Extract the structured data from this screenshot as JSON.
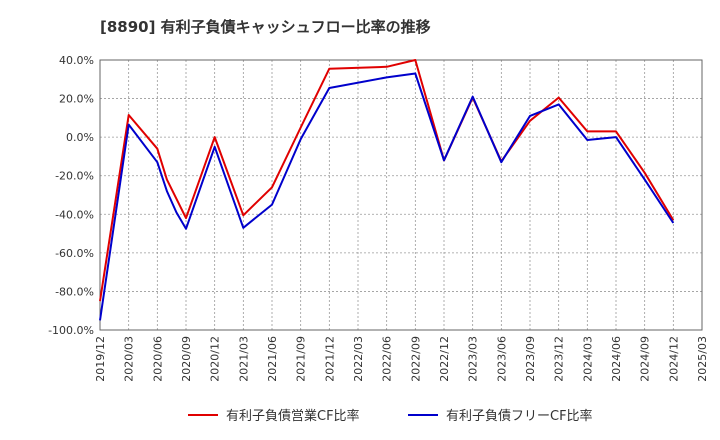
{
  "chart_data": {
    "type": "line",
    "title": "[8890]  有利子負債キャッシュフロー比率の推移",
    "xlabel": "",
    "ylabel": "",
    "ylim": [
      -100,
      40
    ],
    "y_ticks": [
      40,
      20,
      0,
      -20,
      -40,
      -60,
      -80,
      -100
    ],
    "y_tick_labels": [
      "40.0%",
      "20.0%",
      "0.0%",
      "-20.0%",
      "-40.0%",
      "-60.0%",
      "-80.0%",
      "-100.0%"
    ],
    "x": [
      "2019/12",
      "2020/03",
      "2020/06",
      "2020/09",
      "2020/12",
      "2021/03",
      "2021/06",
      "2021/09",
      "2021/12",
      "2022/03",
      "2022/06",
      "2022/09",
      "2022/12",
      "2023/03",
      "2023/06",
      "2023/09",
      "2023/12",
      "2024/03",
      "2024/06",
      "2024/09",
      "2024/12",
      "2025/03"
    ],
    "grid": true,
    "legend_position": "bottom",
    "series": [
      {
        "name": "有利子負債営業CF比率",
        "color": "#e00000",
        "points": [
          [
            "2019/12",
            -85
          ],
          [
            "2020/03",
            11.5
          ],
          [
            "2020/06",
            -6
          ],
          [
            "2020/07",
            -22
          ],
          [
            "2020/09",
            -42
          ],
          [
            "2020/12",
            0
          ],
          [
            "2021/03",
            -40.5
          ],
          [
            "2021/06",
            -26
          ],
          [
            "2021/09",
            5
          ],
          [
            "2021/12",
            35.5
          ],
          [
            "2022/06",
            36.5
          ],
          [
            "2022/09",
            40
          ],
          [
            "2022/12",
            -12
          ],
          [
            "2023/03",
            20.5
          ],
          [
            "2023/06",
            -12.5
          ],
          [
            "2023/09",
            8.5
          ],
          [
            "2023/12",
            20.5
          ],
          [
            "2024/03",
            3
          ],
          [
            "2024/06",
            3
          ],
          [
            "2024/09",
            -18.5
          ],
          [
            "2024/12",
            -43
          ]
        ]
      },
      {
        "name": "有利子負債フリーCF比率",
        "color": "#0000cc",
        "points": [
          [
            "2019/12",
            -95
          ],
          [
            "2020/03",
            6.5
          ],
          [
            "2020/06",
            -13
          ],
          [
            "2020/07",
            -28
          ],
          [
            "2020/08",
            -39
          ],
          [
            "2020/09",
            -47.5
          ],
          [
            "2020/12",
            -5
          ],
          [
            "2021/03",
            -47
          ],
          [
            "2021/06",
            -35
          ],
          [
            "2021/09",
            -1
          ],
          [
            "2021/12",
            25.5
          ],
          [
            "2022/06",
            31
          ],
          [
            "2022/09",
            33
          ],
          [
            "2022/12",
            -12
          ],
          [
            "2023/03",
            21
          ],
          [
            "2023/06",
            -13
          ],
          [
            "2023/09",
            11
          ],
          [
            "2023/12",
            17
          ],
          [
            "2024/03",
            -1.5
          ],
          [
            "2024/06",
            0
          ],
          [
            "2024/09",
            -22
          ],
          [
            "2024/12",
            -44.5
          ]
        ]
      }
    ]
  }
}
